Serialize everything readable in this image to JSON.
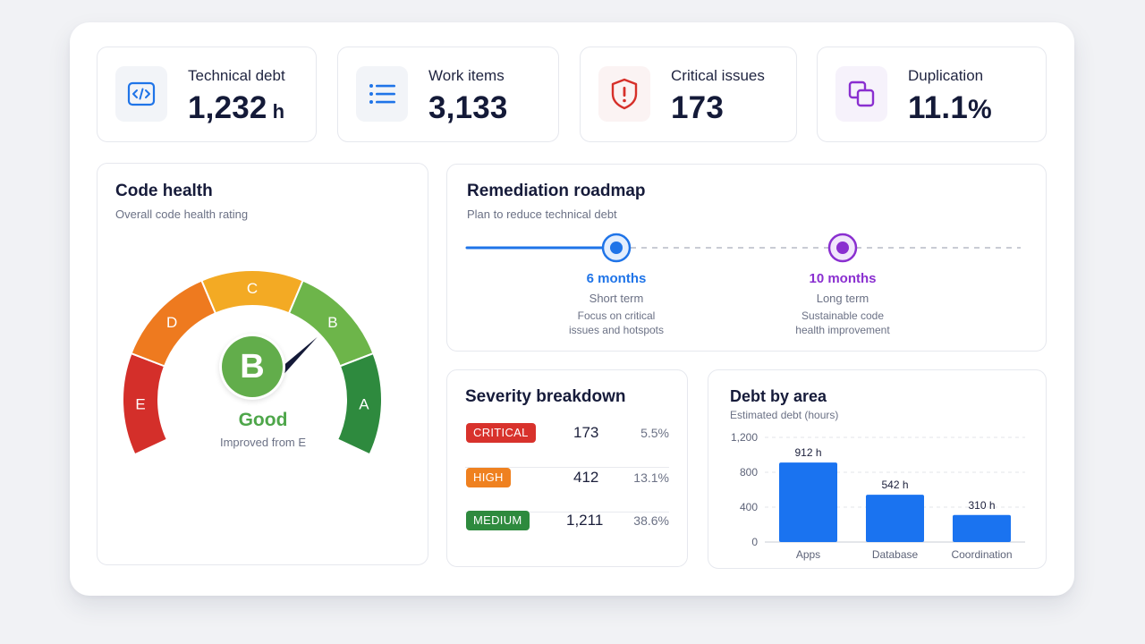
{
  "kpis": [
    {
      "label": "Technical debt",
      "value": "1,232",
      "unit": "h",
      "icon": "code-icon"
    },
    {
      "label": "Work items",
      "value": "3,133",
      "unit": "",
      "icon": "list-icon"
    },
    {
      "label": "Critical issues",
      "value": "173",
      "unit": "",
      "icon": "shield-alert-icon"
    },
    {
      "label": "Duplication",
      "value": "11.1",
      "unit": "%",
      "icon": "copy-icon"
    }
  ],
  "code_health": {
    "title": "Code health",
    "subtitle": "Overall code health rating",
    "segments": [
      {
        "letter": "E",
        "color": "#d42f2a"
      },
      {
        "letter": "D",
        "color": "#ee7a1f"
      },
      {
        "letter": "C",
        "color": "#f3aa24"
      },
      {
        "letter": "B",
        "color": "#6db54a"
      },
      {
        "letter": "A",
        "color": "#2e8a3e"
      }
    ],
    "grade": "B",
    "grade_color": "#62ad4b",
    "grade_label": "Good",
    "note": "Improved from E"
  },
  "roadmap": {
    "title": "Remediation roadmap",
    "subtitle": "Plan to reduce technical debt",
    "milestones": [
      {
        "title": "6 months",
        "term": "Short term",
        "desc_line1": "Focus on critical",
        "desc_line2": "issues and hotspots",
        "color": "#1f74e8"
      },
      {
        "title": "10 months",
        "term": "Long term",
        "desc_line1": "Sustainable code",
        "desc_line2": "health improvement",
        "color": "#8a2fd0"
      }
    ]
  },
  "severity": {
    "title": "Severity breakdown",
    "rows": [
      {
        "label": "CRITICAL",
        "count": "173",
        "pct": "5.5%",
        "color": "#d8322c"
      },
      {
        "label": "HIGH",
        "count": "412",
        "pct": "13.1%",
        "color": "#ef8120"
      },
      {
        "label": "MEDIUM",
        "count": "1,211",
        "pct": "38.6%",
        "color": "#2e8a3e"
      }
    ]
  },
  "debt_by_area": {
    "title": "Debt by area",
    "subtitle": "Estimated debt (hours)",
    "yticks": [
      "0",
      "400",
      "800",
      "1,200"
    ],
    "bar_color": "#1a73f0"
  },
  "chart_data": {
    "type": "bar",
    "categories": [
      "Apps",
      "Database",
      "Coordination"
    ],
    "values": [
      912,
      542,
      310
    ],
    "value_labels": [
      "912 h",
      "542 h",
      "310 h"
    ],
    "title": "Debt by area",
    "subtitle": "Estimated debt (hours)",
    "xlabel": "",
    "ylabel": "",
    "ylim": [
      0,
      1200
    ],
    "grid": true
  }
}
